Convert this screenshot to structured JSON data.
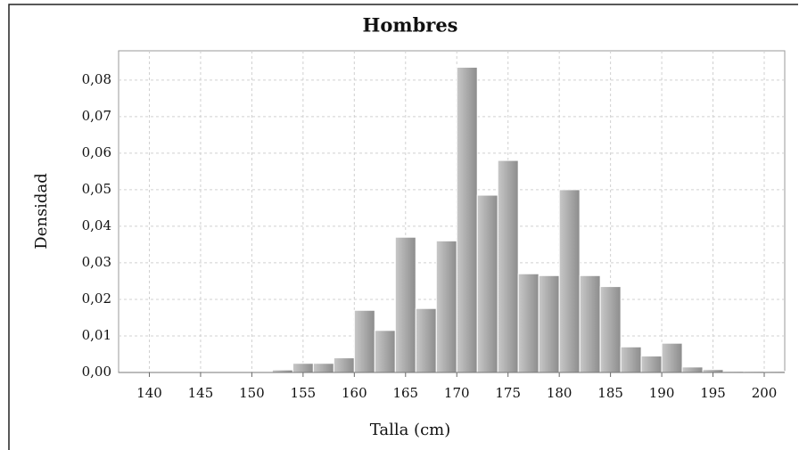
{
  "chart_data": {
    "type": "histogram",
    "title": "Hombres",
    "xlabel": "Talla (cm)",
    "ylabel": "Densidad",
    "bins": [
      140,
      142,
      144,
      146,
      148,
      150,
      152,
      154,
      156,
      158,
      160,
      162,
      164,
      166,
      168,
      170,
      172,
      174,
      176,
      178,
      180,
      182,
      184,
      186,
      188,
      190,
      192,
      194,
      196,
      198,
      200,
      202
    ],
    "counts": [
      0,
      0,
      0,
      0,
      0,
      0,
      0.0007,
      0.0025,
      0.0025,
      0.004,
      0.017,
      0.0115,
      0.037,
      0.0175,
      0.036,
      0.0835,
      0.0485,
      0.058,
      0.027,
      0.0265,
      0.05,
      0.0265,
      0.0235,
      0.007,
      0.0045,
      0.008,
      0.0015,
      0.0008,
      0.0003,
      0.0003,
      0.0003
    ],
    "color": "#a8a8a8",
    "xlim": [
      137,
      202
    ],
    "xticks": [
      140,
      145,
      150,
      155,
      160,
      165,
      170,
      175,
      180,
      185,
      190,
      195,
      200
    ],
    "ylim": [
      0,
      0.088
    ],
    "yticks": [
      {
        "value": 0,
        "label": "0,00"
      },
      {
        "value": 0.01,
        "label": "0,01"
      },
      {
        "value": 0.02,
        "label": "0,02"
      },
      {
        "value": 0.03,
        "label": "0,03"
      },
      {
        "value": 0.04,
        "label": "0,04"
      },
      {
        "value": 0.05,
        "label": "0,05"
      },
      {
        "value": 0.06,
        "label": "0,06"
      },
      {
        "value": 0.07,
        "label": "0,07"
      },
      {
        "value": 0.08,
        "label": "0,08"
      }
    ],
    "grid": true
  }
}
